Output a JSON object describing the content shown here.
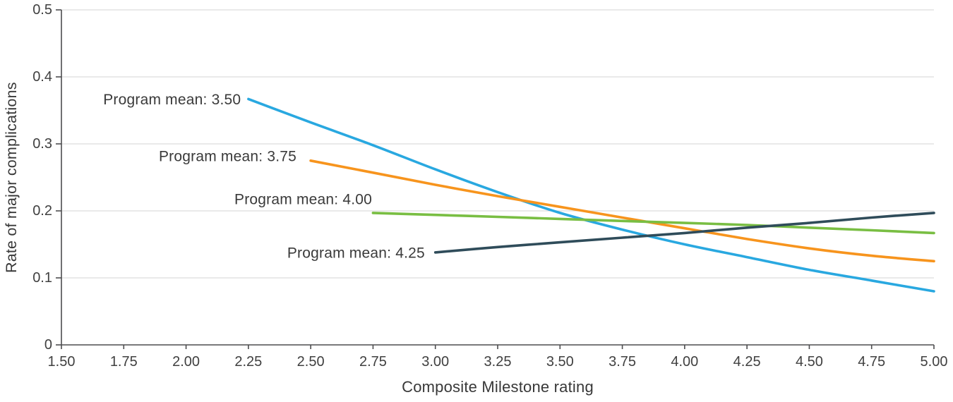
{
  "figure": {
    "background": "#ffffff",
    "text_color": "#3a3a3a",
    "axis_color": "#4d4d4f",
    "grid_color": "#dcdcdc",
    "tick_label_color": "#404040"
  },
  "chart_data": {
    "type": "line",
    "title": "",
    "xlabel": "Composite Milestone rating",
    "ylabel": "Rate of major complications",
    "xlim": [
      1.5,
      5.0
    ],
    "ylim": [
      0,
      0.5
    ],
    "grid": "horizontal",
    "legend_position": "inline-labels",
    "x_ticks": [
      1.5,
      1.75,
      2.0,
      2.25,
      2.5,
      2.75,
      3.0,
      3.25,
      3.5,
      3.75,
      4.0,
      4.25,
      4.5,
      4.75,
      5.0
    ],
    "x_tick_labels": [
      "1.50",
      "1.75",
      "2.00",
      "2.25",
      "2.50",
      "2.75",
      "3.00",
      "3.25",
      "3.50",
      "3.75",
      "4.00",
      "4.25",
      "4.50",
      "4.75",
      "5.00"
    ],
    "y_ticks": [
      0,
      0.1,
      0.2,
      0.3,
      0.4,
      0.5
    ],
    "y_tick_labels": [
      "0",
      "0.1",
      "0.2",
      "0.3",
      "0.4",
      "0.5"
    ],
    "series": [
      {
        "name": "Program mean: 3.50",
        "color": "#29a8e0",
        "x": [
          2.25,
          2.5,
          2.75,
          3.0,
          3.25,
          3.5,
          3.75,
          4.0,
          4.25,
          4.5,
          4.75,
          5.0
        ],
        "y": [
          0.367,
          0.332,
          0.298,
          0.262,
          0.228,
          0.197,
          0.172,
          0.15,
          0.131,
          0.112,
          0.096,
          0.08
        ],
        "label_anchor": {
          "x": 2.22,
          "y": 0.366
        }
      },
      {
        "name": "Program mean: 3.75",
        "color": "#f7941d",
        "x": [
          2.5,
          2.75,
          3.0,
          3.25,
          3.5,
          3.75,
          4.0,
          4.25,
          4.5,
          4.75,
          5.0
        ],
        "y": [
          0.275,
          0.257,
          0.239,
          0.222,
          0.206,
          0.19,
          0.174,
          0.158,
          0.144,
          0.133,
          0.125
        ],
        "label_anchor": {
          "x": 2.443,
          "y": 0.281
        }
      },
      {
        "name": "Program mean: 4.00",
        "color": "#79be43",
        "x": [
          2.75,
          3.0,
          3.25,
          3.5,
          3.75,
          4.0,
          4.25,
          4.5,
          4.75,
          5.0
        ],
        "y": [
          0.197,
          0.194,
          0.191,
          0.188,
          0.185,
          0.182,
          0.179,
          0.175,
          0.171,
          0.167
        ],
        "label_anchor": {
          "x": 2.746,
          "y": 0.217
        }
      },
      {
        "name": "Program mean: 4.25",
        "color": "#2f4c5a",
        "x": [
          3.0,
          3.25,
          3.5,
          3.75,
          4.0,
          4.25,
          4.5,
          4.75,
          5.0
        ],
        "y": [
          0.138,
          0.146,
          0.153,
          0.16,
          0.167,
          0.175,
          0.182,
          0.19,
          0.197
        ],
        "label_anchor": {
          "x": 2.958,
          "y": 0.137
        }
      }
    ]
  }
}
